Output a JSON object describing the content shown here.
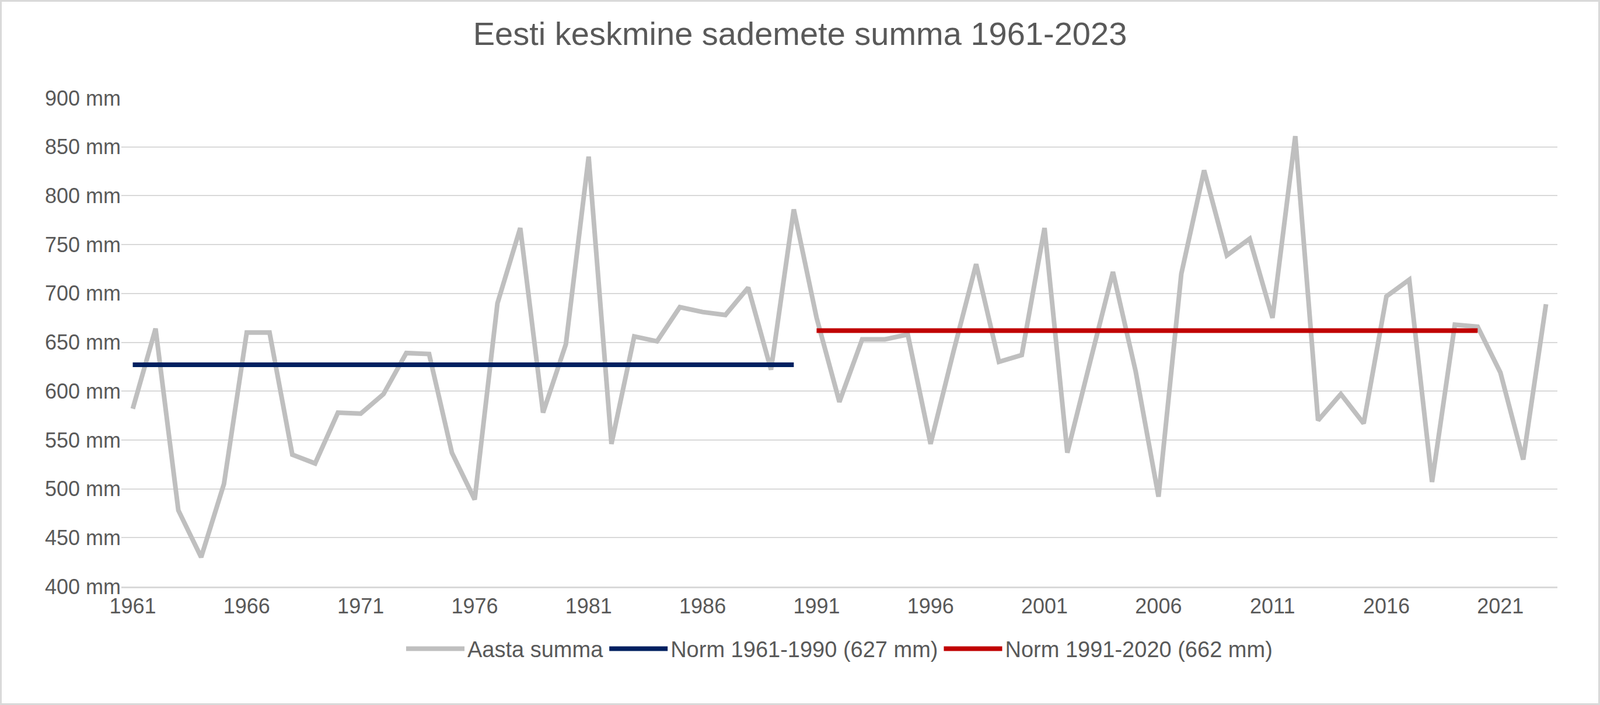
{
  "chart_data": {
    "type": "line",
    "title": "Eesti keskmine sademete summa 1961-2023",
    "x": [
      1961,
      1962,
      1963,
      1964,
      1965,
      1966,
      1967,
      1968,
      1969,
      1970,
      1971,
      1972,
      1973,
      1974,
      1975,
      1976,
      1977,
      1978,
      1979,
      1980,
      1981,
      1982,
      1983,
      1984,
      1985,
      1986,
      1987,
      1988,
      1989,
      1990,
      1991,
      1992,
      1993,
      1994,
      1995,
      1996,
      1997,
      1998,
      1999,
      2000,
      2001,
      2002,
      2003,
      2004,
      2005,
      2006,
      2007,
      2008,
      2009,
      2010,
      2011,
      2012,
      2013,
      2014,
      2015,
      2016,
      2017,
      2018,
      2019,
      2020,
      2021,
      2022,
      2023
    ],
    "series": [
      {
        "name": "Aasta summa",
        "color": "#bfbfbf",
        "values": [
          582,
          664,
          478,
          430,
          505,
          660,
          660,
          535,
          526,
          578,
          577,
          597,
          639,
          638,
          537,
          489,
          690,
          767,
          578,
          648,
          840,
          546,
          656,
          651,
          686,
          681,
          678,
          706,
          622,
          786,
          675,
          589,
          653,
          653,
          658,
          546,
          640,
          730,
          630,
          637,
          767,
          537,
          630,
          722,
          620,
          492,
          720,
          826,
          739,
          756,
          675,
          861,
          570,
          597,
          567,
          697,
          714,
          507,
          668,
          666,
          619,
          530,
          689
        ]
      },
      {
        "name": "Norm 1961-1990 (627 mm)",
        "color": "#002060",
        "values": [
          627,
          627,
          627,
          627,
          627,
          627,
          627,
          627,
          627,
          627,
          627,
          627,
          627,
          627,
          627,
          627,
          627,
          627,
          627,
          627,
          627,
          627,
          627,
          627,
          627,
          627,
          627,
          627,
          627,
          627,
          null,
          null,
          null,
          null,
          null,
          null,
          null,
          null,
          null,
          null,
          null,
          null,
          null,
          null,
          null,
          null,
          null,
          null,
          null,
          null,
          null,
          null,
          null,
          null,
          null,
          null,
          null,
          null,
          null,
          null,
          null,
          null,
          null
        ]
      },
      {
        "name": "Norm 1991-2020 (662 mm)",
        "color": "#c00000",
        "values": [
          null,
          null,
          null,
          null,
          null,
          null,
          null,
          null,
          null,
          null,
          null,
          null,
          null,
          null,
          null,
          null,
          null,
          null,
          null,
          null,
          null,
          null,
          null,
          null,
          null,
          null,
          null,
          null,
          null,
          null,
          662,
          662,
          662,
          662,
          662,
          662,
          662,
          662,
          662,
          662,
          662,
          662,
          662,
          662,
          662,
          662,
          662,
          662,
          662,
          662,
          662,
          662,
          662,
          662,
          662,
          662,
          662,
          662,
          662,
          662,
          null,
          null,
          null
        ]
      }
    ],
    "xlim": [
      1960.5,
      2023.5
    ],
    "xticks": [
      1961,
      1966,
      1971,
      1976,
      1981,
      1986,
      1991,
      1996,
      2001,
      2006,
      2011,
      2016,
      2021
    ],
    "ylim": [
      400,
      900
    ],
    "yticks": [
      {
        "value": 400,
        "label": "400 mm"
      },
      {
        "value": 450,
        "label": "450 mm"
      },
      {
        "value": 500,
        "label": "500 mm"
      },
      {
        "value": 550,
        "label": "550 mm"
      },
      {
        "value": 600,
        "label": "600 mm"
      },
      {
        "value": 650,
        "label": "650 mm"
      },
      {
        "value": 700,
        "label": "700 mm"
      },
      {
        "value": 750,
        "label": "750 mm"
      },
      {
        "value": 800,
        "label": "800 mm"
      },
      {
        "value": 850,
        "label": "850 mm"
      },
      {
        "value": 900,
        "label": "900 mm"
      }
    ],
    "grid": true,
    "legend": "bottom"
  }
}
